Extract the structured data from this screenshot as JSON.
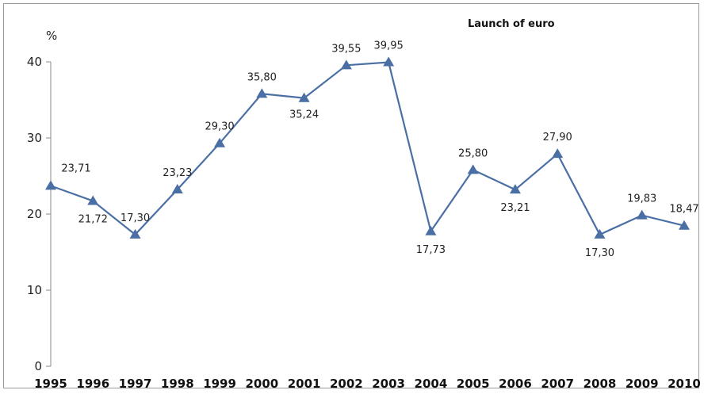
{
  "chart_data": {
    "type": "line",
    "title": "",
    "xlabel": "",
    "ylabel": "%",
    "annotation": "Launch of euro",
    "categories": [
      "1995",
      "1996",
      "1997",
      "1998",
      "1999",
      "2000",
      "2001",
      "2002",
      "2003",
      "2004",
      "2005",
      "2006",
      "2007",
      "2008",
      "2009",
      "2010"
    ],
    "series": [
      {
        "values": [
          23.71,
          21.72,
          17.3,
          23.23,
          29.3,
          35.8,
          35.24,
          39.55,
          39.95,
          17.73,
          25.8,
          23.21,
          27.9,
          17.3,
          19.83,
          18.47
        ],
        "labels": [
          "23,71",
          "21,72",
          "17,30",
          "23,23",
          "29,30",
          "35,80",
          "35,24",
          "39,55",
          "39,95",
          "17,73",
          "25,80",
          "23,21",
          "27,90",
          "17,30",
          "19,83",
          "18,47"
        ],
        "color": "#4a6fa5",
        "marker": "triangle"
      }
    ],
    "ylim": [
      0,
      40
    ],
    "yticks": [
      0,
      10,
      20,
      30,
      40
    ],
    "grid": false,
    "legend": "none"
  }
}
